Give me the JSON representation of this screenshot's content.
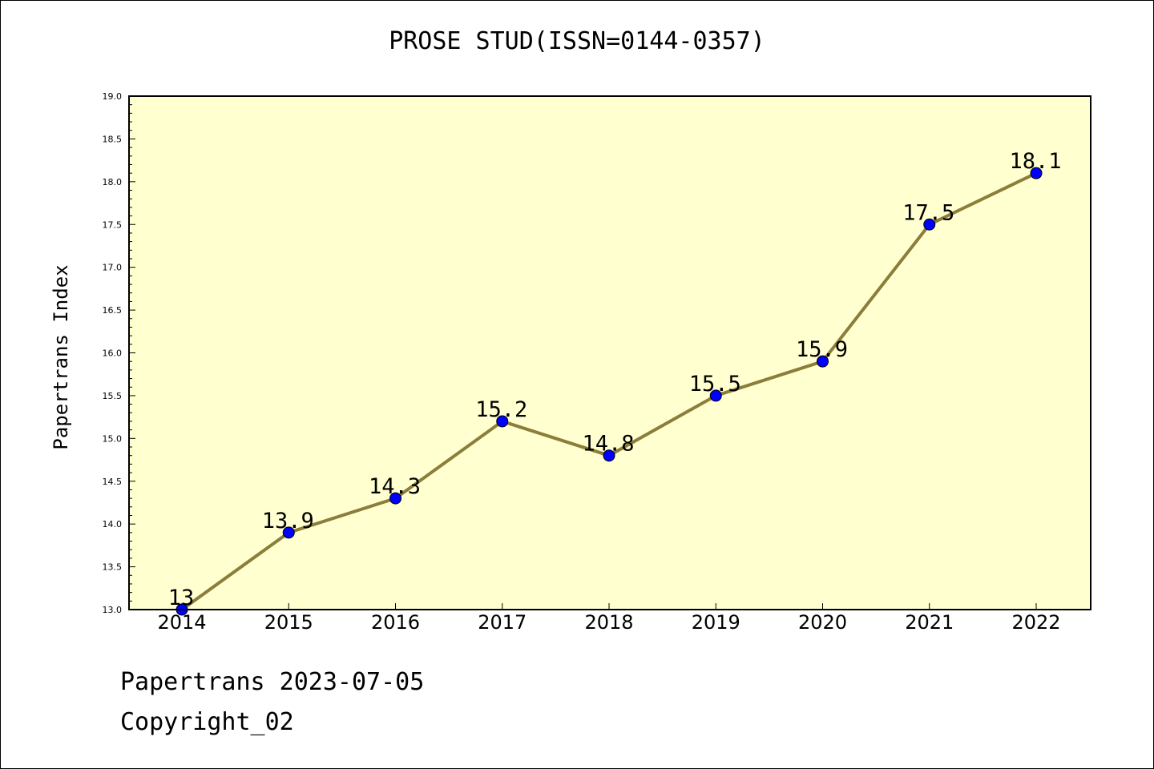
{
  "chart_data": {
    "type": "line",
    "title": "PROSE STUD(ISSN=0144-0357)",
    "ylabel": "Papertrans Index",
    "xlabel": "",
    "categories": [
      "2014",
      "2015",
      "2016",
      "2017",
      "2018",
      "2019",
      "2020",
      "2021",
      "2022"
    ],
    "series": [
      {
        "values": [
          13.0,
          13.9,
          14.3,
          15.2,
          14.8,
          15.5,
          15.9,
          17.5,
          18.1
        ],
        "data_labels": [
          "13",
          "13.9",
          "14.3",
          "15.2",
          "14.8",
          "15.5",
          "15.9",
          "17.5",
          "18.1"
        ]
      }
    ],
    "ylim": [
      13.0,
      19.0
    ],
    "yticks": [
      "13.0",
      "13.5",
      "14.0",
      "14.5",
      "15.0",
      "15.5",
      "16.0",
      "16.5",
      "17.0",
      "17.5",
      "18.0",
      "18.5",
      "19.0"
    ],
    "grid": false,
    "colors": {
      "line": "#8b7d3a",
      "marker_fill": "#0000ff",
      "plot_background": "#ffffd0"
    }
  },
  "footer": {
    "line1": "Papertrans 2023-07-05",
    "line2": "Copyright_02"
  }
}
